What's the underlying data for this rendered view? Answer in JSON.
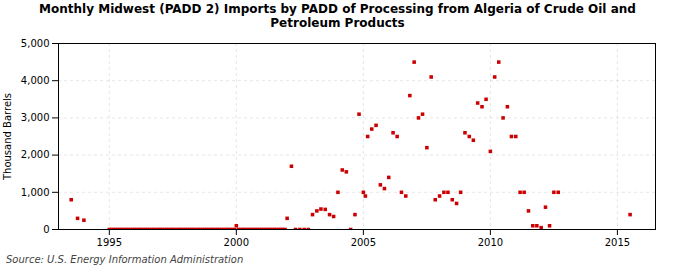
{
  "chart_data": {
    "type": "scatter",
    "title": "Monthly Midwest (PADD 2) Imports by PADD of Processing from Algeria of Crude Oil and\nPetroleum Products",
    "ylabel": "Thousand Barrels",
    "source": "Source: U.S. Energy Information Administration",
    "color": "#cc0000",
    "marker": "square",
    "grid": true,
    "xlim": [
      1993.0,
      2016.5
    ],
    "ylim": [
      0,
      5000
    ],
    "xticks": [
      1995,
      2000,
      2005,
      2010,
      2015
    ],
    "yticks": [
      0,
      {
        "value": 1000,
        "label": "1,000"
      },
      {
        "value": 2000,
        "label": "2,000"
      },
      {
        "value": 3000,
        "label": "3,000"
      },
      {
        "value": 4000,
        "label": "4,000"
      },
      {
        "value": 5000,
        "label": "5,000"
      }
    ],
    "x": [
      1993.5,
      1993.75,
      1994.0,
      1995.0,
      1995.08,
      1995.17,
      1995.25,
      1995.33,
      1995.42,
      1995.5,
      1995.58,
      1995.67,
      1995.75,
      1995.83,
      1995.92,
      1996.0,
      1996.08,
      1996.17,
      1996.25,
      1996.33,
      1996.42,
      1996.5,
      1996.58,
      1996.67,
      1996.75,
      1996.83,
      1996.92,
      1997.0,
      1997.08,
      1997.17,
      1997.25,
      1997.33,
      1997.42,
      1997.5,
      1997.58,
      1997.67,
      1997.75,
      1997.83,
      1997.92,
      1998.0,
      1998.08,
      1998.17,
      1998.25,
      1998.33,
      1998.42,
      1998.5,
      1998.58,
      1998.67,
      1998.75,
      1998.83,
      1998.92,
      1999.0,
      1999.08,
      1999.17,
      1999.25,
      1999.33,
      1999.42,
      1999.5,
      1999.58,
      1999.67,
      1999.75,
      1999.83,
      1999.92,
      2000.0,
      2000.08,
      2000.17,
      2000.25,
      2000.33,
      2000.42,
      2000.5,
      2000.58,
      2000.67,
      2000.75,
      2000.83,
      2000.92,
      2001.0,
      2001.08,
      2001.17,
      2001.25,
      2001.33,
      2001.42,
      2001.5,
      2001.58,
      2001.67,
      2001.75,
      2001.83,
      2001.92,
      2002.0,
      2002.17,
      2002.33,
      2002.5,
      2002.67,
      2002.83,
      2003.0,
      2003.17,
      2003.33,
      2003.5,
      2003.67,
      2003.83,
      2004.0,
      2004.17,
      2004.33,
      2004.5,
      2004.67,
      2004.83,
      2005.0,
      2005.08,
      2005.17,
      2005.33,
      2005.5,
      2005.67,
      2005.83,
      2006.0,
      2006.17,
      2006.33,
      2006.5,
      2006.67,
      2006.83,
      2007.0,
      2007.17,
      2007.33,
      2007.5,
      2007.67,
      2007.83,
      2008.0,
      2008.17,
      2008.33,
      2008.5,
      2008.67,
      2008.83,
      2009.0,
      2009.17,
      2009.33,
      2009.5,
      2009.67,
      2009.83,
      2010.0,
      2010.17,
      2010.33,
      2010.5,
      2010.67,
      2010.83,
      2011.0,
      2011.17,
      2011.33,
      2011.5,
      2011.67,
      2011.83,
      2012.0,
      2012.17,
      2012.33,
      2012.5,
      2012.67,
      2015.5
    ],
    "values": [
      800,
      300,
      250,
      0,
      0,
      0,
      0,
      0,
      0,
      0,
      0,
      0,
      0,
      0,
      0,
      0,
      0,
      0,
      0,
      0,
      0,
      0,
      0,
      0,
      0,
      0,
      0,
      0,
      0,
      0,
      0,
      0,
      0,
      0,
      0,
      0,
      0,
      0,
      0,
      0,
      0,
      0,
      0,
      0,
      0,
      0,
      0,
      0,
      0,
      0,
      0,
      0,
      0,
      0,
      0,
      0,
      0,
      0,
      0,
      0,
      0,
      0,
      0,
      100,
      0,
      0,
      0,
      0,
      0,
      0,
      0,
      0,
      0,
      0,
      0,
      0,
      0,
      0,
      0,
      0,
      0,
      0,
      0,
      0,
      0,
      0,
      0,
      300,
      1700,
      0,
      0,
      0,
      0,
      400,
      500,
      550,
      540,
      400,
      350,
      1000,
      1600,
      1550,
      0,
      400,
      3100,
      1000,
      900,
      2500,
      2700,
      2800,
      1200,
      1100,
      1400,
      2600,
      2500,
      1000,
      900,
      3600,
      4500,
      3000,
      3100,
      2200,
      4100,
      800,
      900,
      1000,
      1000,
      800,
      700,
      1000,
      2600,
      2500,
      2400,
      3400,
      3300,
      3500,
      2100,
      4100,
      4500,
      3000,
      3300,
      2500,
      2500,
      1000,
      1000,
      500,
      100,
      100,
      50,
      600,
      100,
      1000,
      1000,
      400
    ]
  }
}
